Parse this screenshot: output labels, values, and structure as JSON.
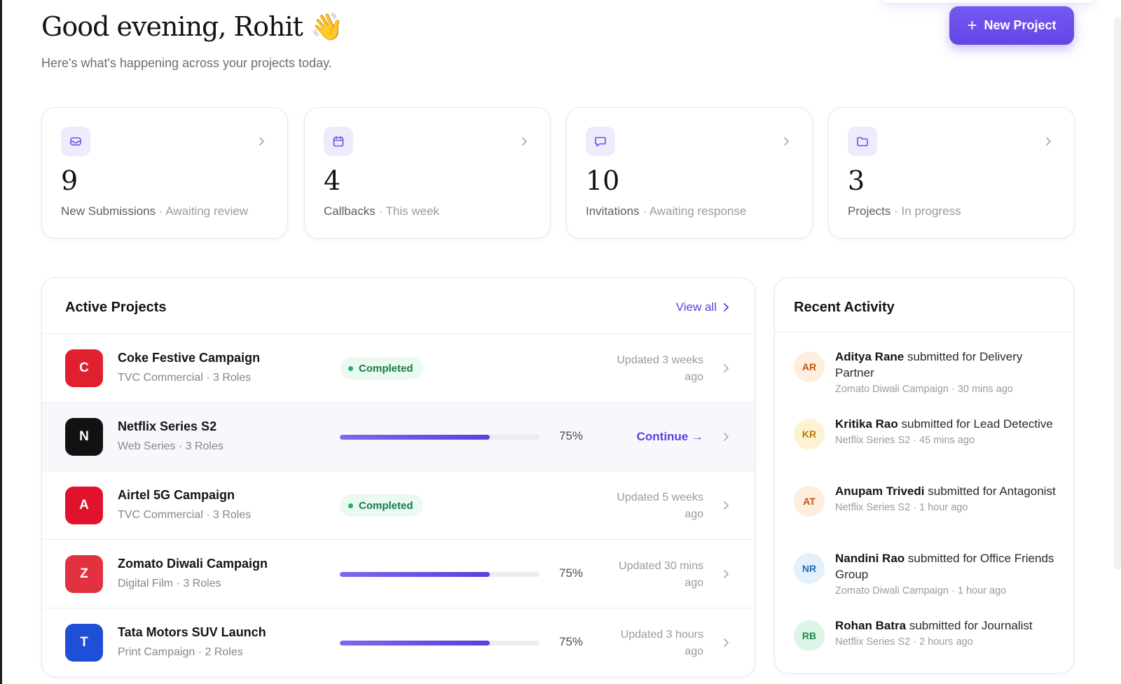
{
  "header": {
    "greeting": "Good evening, Rohit",
    "wave_emoji": "👋",
    "subtitle": "Here's what's happening across your projects today.",
    "new_project_label": "New Project",
    "accent_color": "#6446e6"
  },
  "stats": [
    {
      "icon": "inbox-icon",
      "value": "9",
      "label": "New Submissions",
      "sub": "· Awaiting review"
    },
    {
      "icon": "calendar-icon",
      "value": "4",
      "label": "Callbacks",
      "sub": "· This week"
    },
    {
      "icon": "message-icon",
      "value": "10",
      "label": "Invitations",
      "sub": "· Awaiting response"
    },
    {
      "icon": "folder-icon",
      "value": "3",
      "label": "Projects",
      "sub": "· In progress"
    }
  ],
  "active_projects": {
    "title": "Active Projects",
    "view_all_label": "View all",
    "items": [
      {
        "initial": "C",
        "color": "#e0202e",
        "name": "Coke Festive Campaign",
        "meta": "TVC Commercial · 3 Roles",
        "status": "Completed",
        "progress": null,
        "updated_line1": "Updated 3 weeks",
        "updated_line2": "ago"
      },
      {
        "initial": "N",
        "color": "#121212",
        "name": "Netflix Series S2",
        "meta": "Web Series · 3 Roles",
        "status": null,
        "progress": 75,
        "progress_label": "75%",
        "action_label": "Continue →"
      },
      {
        "initial": "A",
        "color": "#e0122c",
        "name": "Airtel 5G Campaign",
        "meta": "TVC Commercial · 3 Roles",
        "status": "Completed",
        "progress": null,
        "updated_line1": "Updated 5 weeks",
        "updated_line2": "ago"
      },
      {
        "initial": "Z",
        "color": "#e2313f",
        "name": "Zomato Diwali Campaign",
        "meta": "Digital Film · 3 Roles",
        "status": null,
        "progress": 75,
        "progress_label": "75%",
        "updated_line1": "Updated 30 mins",
        "updated_line2": "ago"
      },
      {
        "initial": "T",
        "color": "#1d4fd7",
        "name": "Tata Motors SUV Launch",
        "meta": "Print Campaign · 2 Roles",
        "status": null,
        "progress": 75,
        "progress_label": "75%",
        "updated_line1": "Updated 3 hours",
        "updated_line2": "ago"
      }
    ]
  },
  "recent_activity": {
    "title": "Recent Activity",
    "items": [
      {
        "initials": "AR",
        "bg": "#fdeedd",
        "fg": "#c2540f",
        "name": "Aditya Rane",
        "action": "submitted for",
        "role": "Delivery Partner",
        "sub": "Zomato Diwali Campaign · 30 mins ago"
      },
      {
        "initials": "KR",
        "bg": "#fdf3d4",
        "fg": "#b8790a",
        "name": "Kritika Rao",
        "action": "submitted for",
        "role": "Lead Detective",
        "sub": "Netflix Series S2 · 45 mins ago"
      },
      {
        "initials": "AT",
        "bg": "#fdeedd",
        "fg": "#c2540f",
        "name": "Anupam Trivedi",
        "action": "submitted for",
        "role": "Antagonist",
        "sub": "Netflix Series S2 · 1 hour ago"
      },
      {
        "initials": "NR",
        "bg": "#e3f1fc",
        "fg": "#1f6fb8",
        "name": "Nandini Rao",
        "action": "submitted for",
        "role": "Office Friends Group",
        "sub": "Zomato Diwali Campaign · 1 hour ago"
      },
      {
        "initials": "RB",
        "bg": "#dcf5e6",
        "fg": "#1d8a4c",
        "name": "Rohan Batra",
        "action": "submitted for",
        "role": "Journalist",
        "sub": "Netflix Series S2 · 2 hours ago"
      }
    ]
  }
}
